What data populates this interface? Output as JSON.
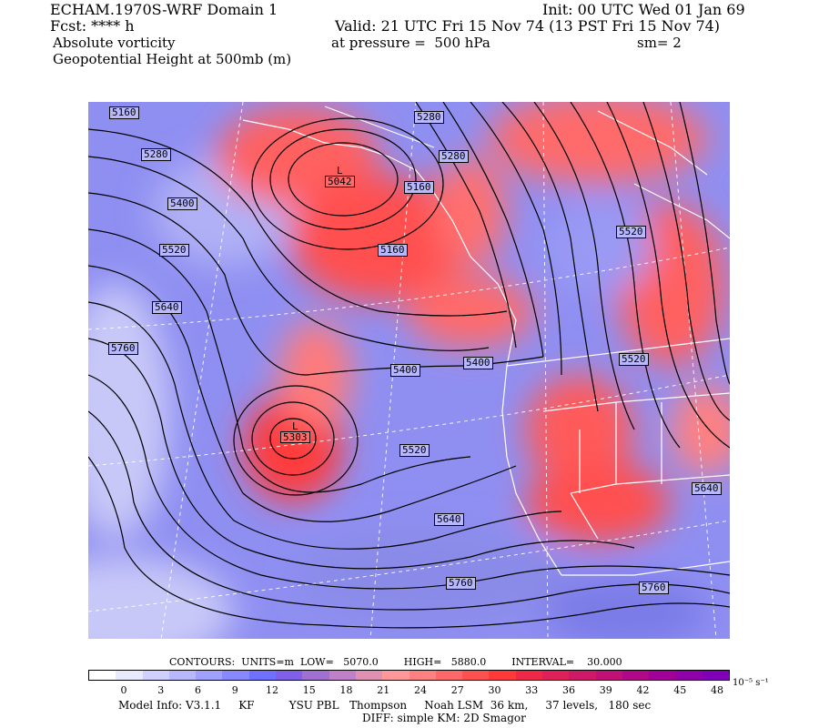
{
  "header": {
    "model": "ECHAM.1970S-WRF Domain 1",
    "init": "Init: 00 UTC Wed 01 Jan 69",
    "fcst": "Fcst: **** h",
    "valid": "Valid: 21 UTC Fri 15 Nov 74 (13 PST Fri 15 Nov 74)",
    "field1": "Absolute vorticity",
    "pressure": "at pressure =  500 hPa",
    "smooth": "sm= 2",
    "field2": "Geopotential Height at 500mb (m)"
  },
  "map": {
    "contour_labels": [
      "5160",
      "5280",
      "5400",
      "5520",
      "5640",
      "5760",
      "5280",
      "5280",
      "5160",
      "5160",
      "5520",
      "5400",
      "5400",
      "5520",
      "5520",
      "5640",
      "5640",
      "5760",
      "5760"
    ],
    "lows": [
      {
        "symbol": "L",
        "value": "5042"
      },
      {
        "symbol": "L",
        "value": "5303"
      }
    ],
    "colors": {
      "positive": "#ff5a5a",
      "negative": "#8b8bf0",
      "lines": "#000000",
      "borders": "#ffffff"
    }
  },
  "contours_info": {
    "text": "CONTOURS:  UNITS=m  LOW=   5070.0        HIGH=   5880.0        INTERVAL=    30.000"
  },
  "colorbar": {
    "colors": [
      "#ffffff",
      "#e8e8ff",
      "#d0d0ff",
      "#b8b8ff",
      "#a0a0ff",
      "#8888ff",
      "#7070ff",
      "#8060e8",
      "#a070d0",
      "#c080c8",
      "#e090b0",
      "#ff9898",
      "#ff8080",
      "#ff6868",
      "#ff5050",
      "#ff3838",
      "#f02848",
      "#e02058",
      "#d01868",
      "#c01078",
      "#b00888",
      "#a00098",
      "#9000a8",
      "#8000b8"
    ],
    "ticks": [
      "0",
      "3",
      "6",
      "9",
      "12",
      "15",
      "18",
      "21",
      "24",
      "27",
      "30",
      "33",
      "36",
      "39",
      "42",
      "45",
      "48"
    ],
    "units": "10⁻⁵ s⁻¹"
  },
  "footer": {
    "line1": "Model Info: V3.1.1     KF          YSU PBL   Thompson     Noah LSM  36 km,     37 levels,   180 sec",
    "line2": "DIFF: simple KM: 2D Smagor"
  }
}
